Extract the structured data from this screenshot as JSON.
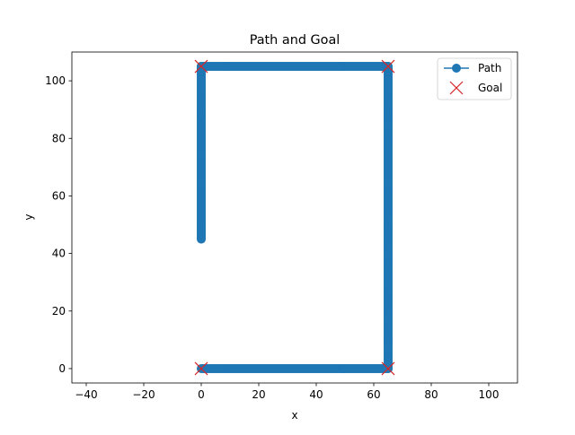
{
  "chart_data": {
    "type": "line",
    "title": "Path and Goal",
    "xlabel": "x",
    "ylabel": "y",
    "xlim": [
      -45,
      110
    ],
    "ylim": [
      -5,
      110
    ],
    "x_ticks": [
      -40,
      -20,
      0,
      20,
      40,
      60,
      80,
      100
    ],
    "y_ticks": [
      0,
      20,
      40,
      60,
      80,
      100
    ],
    "grid": false,
    "legend_position": "upper right",
    "series": [
      {
        "name": "Path",
        "kind": "line-with-markers",
        "color": "#1f77b4",
        "vertices": [
          [
            0,
            45
          ],
          [
            0,
            105
          ],
          [
            65,
            105
          ],
          [
            65,
            0
          ],
          [
            0,
            0
          ]
        ],
        "step": 0.5
      },
      {
        "name": "Goal",
        "kind": "x-markers",
        "color": "#d62728",
        "points": [
          [
            0,
            105
          ],
          [
            65,
            105
          ],
          [
            65,
            0
          ],
          [
            0,
            0
          ]
        ]
      }
    ]
  }
}
